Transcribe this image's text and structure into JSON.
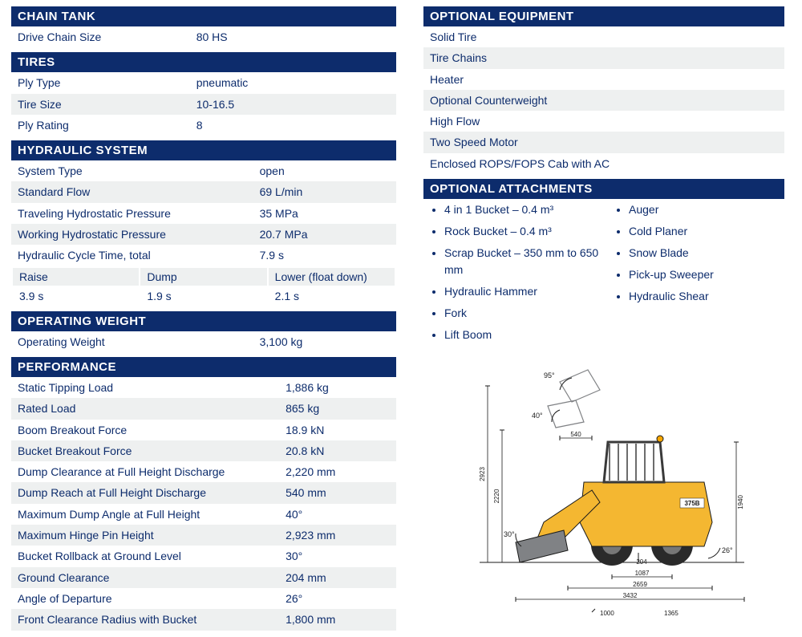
{
  "colors": {
    "header_bg": "#0d2c6c",
    "header_text": "#ffffff",
    "row_text": "#0d2c6c",
    "row_alt_bg": "#eef0f0",
    "body_bg": "#ffffff"
  },
  "typography": {
    "body_fontsize_pt": 10.5,
    "header_fontsize_pt": 11,
    "font_family": "Arial"
  },
  "left": {
    "chain_tank": {
      "title": "CHAIN TANK",
      "rows": [
        {
          "label": "Drive Chain Size",
          "value": "80 HS"
        }
      ]
    },
    "tires": {
      "title": "TIRES",
      "rows": [
        {
          "label": "Ply Type",
          "value": "pneumatic"
        },
        {
          "label": "Tire Size",
          "value": "10-16.5"
        },
        {
          "label": "Ply Rating",
          "value": "8"
        }
      ]
    },
    "hydraulic": {
      "title": "HYDRAULIC SYSTEM",
      "rows": [
        {
          "label": "System Type",
          "value": "open"
        },
        {
          "label": "Standard Flow",
          "value": "69 L/min"
        },
        {
          "label": "Traveling Hydrostatic Pressure",
          "value": "35 MPa"
        },
        {
          "label": "Working Hydrostatic Pressure",
          "value": "20.7 MPa"
        },
        {
          "label": "Hydraulic Cycle Time, total",
          "value": "7.9 s"
        }
      ],
      "cycle_labels": {
        "c1": "Raise",
        "c2": "Dump",
        "c3": "Lower (float down)"
      },
      "cycle_values": {
        "c1": "3.9 s",
        "c2": "1.9 s",
        "c3": "2.1 s"
      }
    },
    "op_weight": {
      "title": "OPERATING WEIGHT",
      "rows": [
        {
          "label": "Operating Weight",
          "value": "3,100 kg"
        }
      ]
    },
    "performance": {
      "title": "PERFORMANCE",
      "rows": [
        {
          "label": "Static Tipping Load",
          "value": "1,886 kg"
        },
        {
          "label": "Rated Load",
          "value": "865 kg"
        },
        {
          "label": "Boom Breakout Force",
          "value": "18.9 kN"
        },
        {
          "label": "Bucket Breakout Force",
          "value": "20.8 kN"
        },
        {
          "label": "Dump Clearance at Full Height Discharge",
          "value": "2,220 mm"
        },
        {
          "label": "Dump Reach at Full Height Discharge",
          "value": "540 mm"
        },
        {
          "label": "Maximum Dump Angle at Full Height",
          "value": "40°"
        },
        {
          "label": "Maximum Hinge Pin Height",
          "value": "2,923 mm"
        },
        {
          "label": "Bucket Rollback at Ground Level",
          "value": "30°"
        },
        {
          "label": "Ground Clearance",
          "value": "204 mm"
        },
        {
          "label": "Angle of Departure",
          "value": "26°"
        },
        {
          "label": "Front Clearance Radius with Bucket",
          "value": "1,800 mm"
        }
      ]
    }
  },
  "right": {
    "optional_equipment": {
      "title": "OPTIONAL EQUIPMENT",
      "items": [
        "Solid Tire",
        "Tire Chains",
        "Heater",
        "Optional Counterweight",
        "High Flow",
        "Two Speed Motor",
        "Enclosed ROPS/FOPS Cab with AC"
      ]
    },
    "optional_attachments": {
      "title": "OPTIONAL ATTACHMENTS",
      "col1": [
        "4 in 1 Bucket – 0.4 m³",
        "Rock Bucket – 0.4 m³",
        "Scrap Bucket – 350 mm to 650 mm",
        "Hydraulic Hammer",
        "Fork",
        "Lift Boom"
      ],
      "col2": [
        "Auger",
        "Cold Planer",
        "Snow Blade",
        "Pick-up Sweeper",
        "Hydraulic Shear"
      ]
    },
    "diagram": {
      "model": "375B",
      "dimensions": {
        "bucket_angle_up": "95°",
        "bucket_angle_mid": "40°",
        "bucket_angle_low": "30°",
        "departure_angle": "26°",
        "height_total": "2923",
        "height_dump": "2220",
        "height_cab": "1940",
        "reach": "540",
        "clearance": "204",
        "wheelbase": "1087",
        "length_no_bucket": "2659",
        "length_total": "3432",
        "bottom_a": "1000",
        "bottom_b": "1365"
      },
      "colors": {
        "body": "#f4b731",
        "wheel": "#2a2a2a",
        "cab": "#3a3a3a",
        "bucket": "#808285",
        "line": "#1a1a1a"
      }
    }
  }
}
